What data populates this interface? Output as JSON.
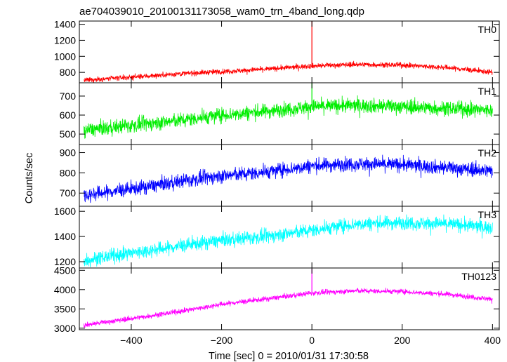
{
  "chart_data": {
    "type": "line",
    "title": "ae704039010_20100131173058_wam0_trn_4band_long.qdp",
    "xlabel": "Time [sec] 0 = 2010/01/31 17:30:58",
    "ylabel": "Counts/sec",
    "xlim": [
      -515,
      415
    ],
    "xticks": [
      -400,
      -200,
      0,
      200,
      400
    ],
    "xtick_labels": [
      "−400",
      "−200",
      "0",
      "200",
      "400"
    ],
    "grid": false,
    "panels": [
      {
        "name": "TH0",
        "color": "#ff0000",
        "ylim": [
          670,
          1440
        ],
        "yticks": [
          800,
          1000,
          1200,
          1400
        ],
        "start": [
          -505,
          700
        ],
        "end": [
          400,
          800
        ],
        "curve": [
          [
            -505,
            700
          ],
          [
            -400,
            740
          ],
          [
            -300,
            780
          ],
          [
            -200,
            810
          ],
          [
            -100,
            840
          ],
          [
            0,
            880
          ],
          [
            100,
            900
          ],
          [
            200,
            890
          ],
          [
            300,
            860
          ],
          [
            400,
            800
          ]
        ],
        "noise": 30,
        "spike": {
          "x": 0,
          "y": 1440
        }
      },
      {
        "name": "TH1",
        "color": "#00ee00",
        "ylim": [
          445,
          770
        ],
        "yticks": [
          500,
          600,
          700
        ],
        "start": [
          -505,
          520
        ],
        "end": [
          400,
          625
        ],
        "curve": [
          [
            -505,
            520
          ],
          [
            -400,
            545
          ],
          [
            -300,
            570
          ],
          [
            -200,
            600
          ],
          [
            -100,
            620
          ],
          [
            0,
            645
          ],
          [
            100,
            650
          ],
          [
            200,
            645
          ],
          [
            300,
            635
          ],
          [
            400,
            625
          ]
        ],
        "noise": 35,
        "spike": {
          "x": 0,
          "y": 770
        }
      },
      {
        "name": "TH2",
        "color": "#0000ff",
        "ylim": [
          635,
          940
        ],
        "yticks": [
          700,
          800,
          900
        ],
        "start": [
          -505,
          690
        ],
        "end": [
          400,
          810
        ],
        "curve": [
          [
            -505,
            690
          ],
          [
            -400,
            720
          ],
          [
            -300,
            755
          ],
          [
            -200,
            785
          ],
          [
            -100,
            805
          ],
          [
            0,
            835
          ],
          [
            100,
            845
          ],
          [
            200,
            840
          ],
          [
            300,
            825
          ],
          [
            400,
            810
          ]
        ],
        "noise": 32,
        "spike": null
      },
      {
        "name": "TH3",
        "color": "#00ffff",
        "ylim": [
          1150,
          1640
        ],
        "yticks": [
          1200,
          1400,
          1600
        ],
        "start": [
          -505,
          1210
        ],
        "end": [
          400,
          1470
        ],
        "curve": [
          [
            -505,
            1210
          ],
          [
            -400,
            1270
          ],
          [
            -300,
            1320
          ],
          [
            -200,
            1370
          ],
          [
            -100,
            1400
          ],
          [
            0,
            1450
          ],
          [
            100,
            1500
          ],
          [
            200,
            1510
          ],
          [
            300,
            1500
          ],
          [
            400,
            1470
          ]
        ],
        "noise": 50,
        "spike": null
      },
      {
        "name": "TH0123",
        "color": "#ff00ff",
        "ylim": [
          2960,
          4560
        ],
        "yticks": [
          3000,
          3500,
          4000,
          4500
        ],
        "start": [
          -505,
          3080
        ],
        "end": [
          400,
          3750
        ],
        "curve": [
          [
            -505,
            3080
          ],
          [
            -400,
            3250
          ],
          [
            -300,
            3420
          ],
          [
            -200,
            3620
          ],
          [
            -100,
            3760
          ],
          [
            0,
            3910
          ],
          [
            100,
            3970
          ],
          [
            200,
            3950
          ],
          [
            300,
            3880
          ],
          [
            400,
            3750
          ]
        ],
        "noise": 60,
        "spike": {
          "x": 0,
          "y": 4530
        }
      }
    ]
  }
}
